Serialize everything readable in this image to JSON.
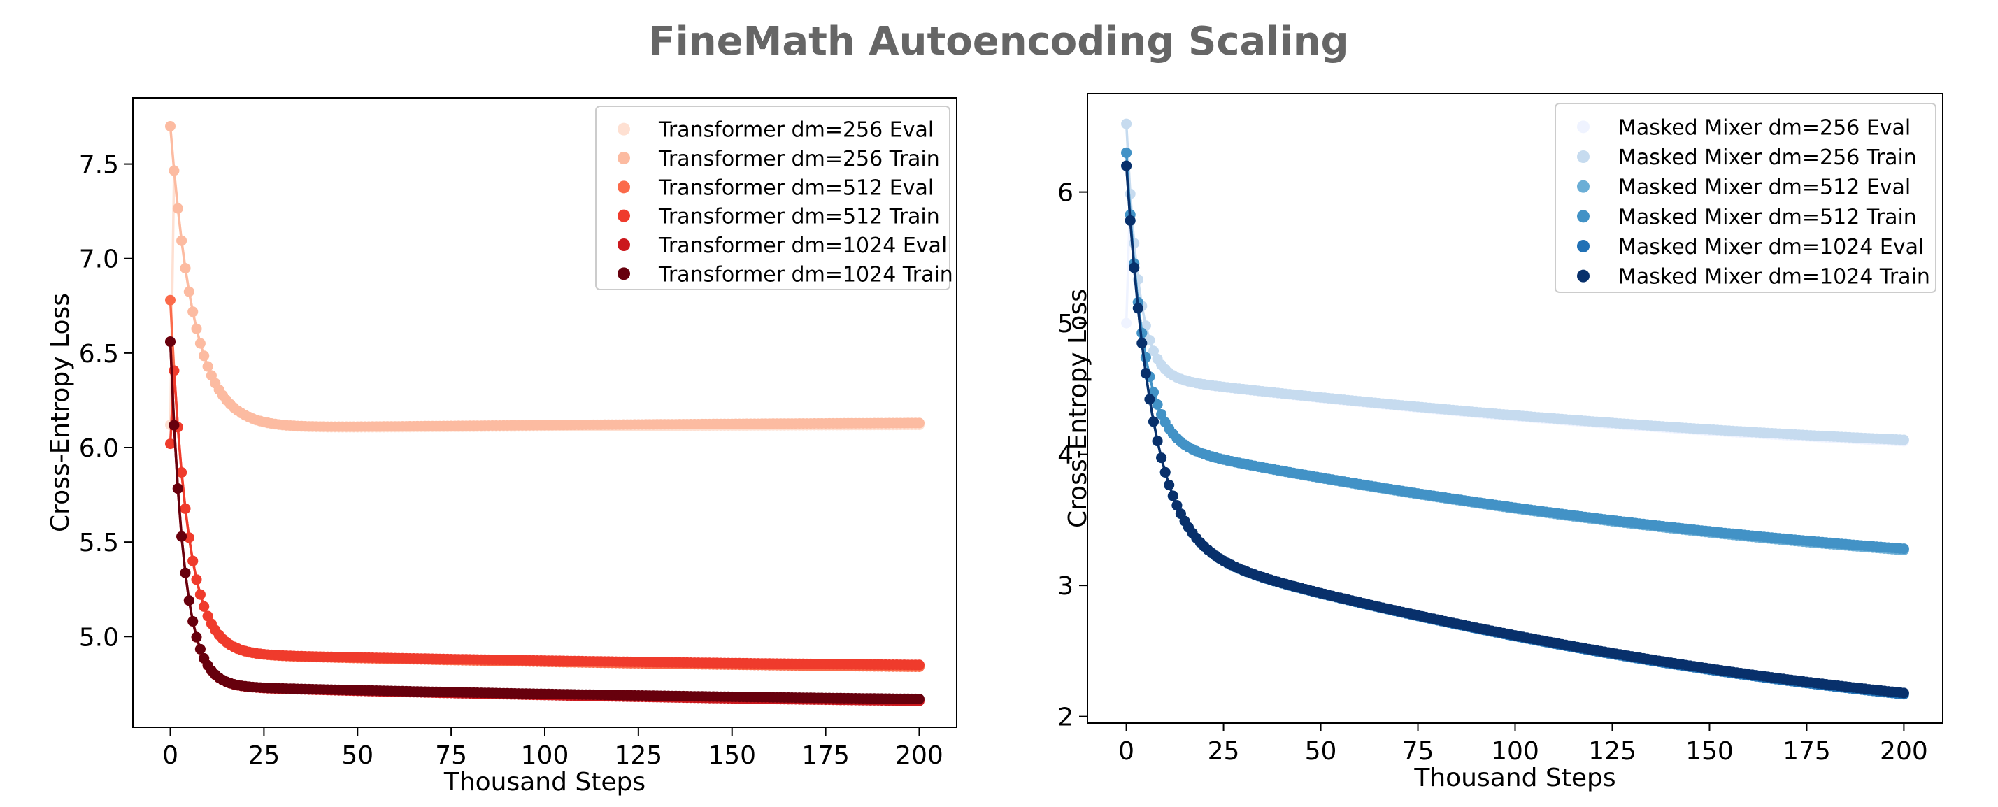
{
  "figure": {
    "title": "FineMath Autoencoding Scaling"
  },
  "chart_data": [
    {
      "type": "line",
      "markers": true,
      "xlabel": "Thousand Steps",
      "ylabel": "Cross-Entropy Loss",
      "xlim": [
        -10,
        210
      ],
      "ylim": [
        4.52,
        7.85
      ],
      "xticks": [
        0,
        25,
        50,
        75,
        100,
        125,
        150,
        175,
        200
      ],
      "yticks": [
        5.0,
        5.5,
        6.0,
        6.5,
        7.0,
        7.5
      ],
      "grid": false,
      "legend_position": "upper right",
      "series": [
        {
          "name": "Transformer dm=256 Eval",
          "color": "#fee0d2",
          "curve": {
            "a": 7.7,
            "b": 6.1,
            "c": 0.0015,
            "tau": 6.3,
            "y0": 6.12,
            "y200": 6.12
          }
        },
        {
          "name": "Transformer dm=256 Train",
          "color": "#fcbba1",
          "curve": {
            "a": 7.7,
            "b": 6.1,
            "c": 0.0015,
            "tau": 6.3,
            "y0": 7.7,
            "y200": 6.13
          }
        },
        {
          "name": "Transformer dm=512 Eval",
          "color": "#fb6a4a",
          "curve": {
            "a": 6.78,
            "b": 4.91,
            "c": 0.0035,
            "tau": 4.5,
            "y0": 6.78,
            "y200": 4.84
          }
        },
        {
          "name": "Transformer dm=512 Train",
          "color": "#ef3b2c",
          "curve": {
            "a": 6.78,
            "b": 4.91,
            "c": 0.0035,
            "tau": 4.5,
            "y0": 6.02,
            "y200": 4.85
          }
        },
        {
          "name": "Transformer dm=1024 Eval",
          "color": "#cb181d",
          "curve": {
            "a": 6.56,
            "b": 4.74,
            "c": 0.0037,
            "tau": 3.6,
            "y0": 6.56,
            "y200": 4.66
          }
        },
        {
          "name": "Transformer dm=1024 Train",
          "color": "#67000d",
          "curve": {
            "a": 6.56,
            "b": 4.74,
            "c": 0.0037,
            "tau": 3.6,
            "y0": 6.56,
            "y200": 4.67
          }
        }
      ]
    },
    {
      "type": "line",
      "markers": true,
      "xlabel": "Thousand Steps",
      "ylabel": "Cross-Entropy Loss",
      "xlim": [
        -10,
        210
      ],
      "ylim": [
        1.95,
        6.75
      ],
      "xticks": [
        0,
        25,
        50,
        75,
        100,
        125,
        150,
        175,
        200
      ],
      "yticks": [
        2,
        3,
        4,
        5,
        6
      ],
      "grid": false,
      "legend_position": "upper right",
      "series": [
        {
          "name": "Masked Mixer dm=256 Eval",
          "color": "#eff3ff",
          "curve": {
            "a": 6.5,
            "b": 4.6,
            "c": 0.0025,
            "tau": 3.2,
            "y0": 5.0,
            "y200": 4.1
          }
        },
        {
          "name": "Masked Mixer dm=256 Train",
          "color": "#c6dbef",
          "curve": {
            "a": 6.5,
            "b": 4.6,
            "c": 0.0025,
            "tau": 3.2,
            "y0": 6.52,
            "y200": 4.11
          }
        },
        {
          "name": "Masked Mixer dm=512 Eval",
          "color": "#6baed6",
          "curve": {
            "a": 6.3,
            "b": 4.1,
            "c": 0.0041,
            "tau": 4.2,
            "y0": 6.3,
            "y200": 3.27
          }
        },
        {
          "name": "Masked Mixer dm=512 Train",
          "color": "#4292c6",
          "curve": {
            "a": 6.3,
            "b": 4.1,
            "c": 0.0041,
            "tau": 4.2,
            "y0": 6.3,
            "y200": 3.28
          }
        },
        {
          "name": "Masked Mixer dm=1024 Eval",
          "color": "#2171b5",
          "curve": {
            "a": 6.2,
            "b": 3.33,
            "c": 0.0058,
            "tau": 6.5,
            "y0": 6.2,
            "y200": 2.17
          }
        },
        {
          "name": "Masked Mixer dm=1024 Train",
          "color": "#08306b",
          "curve": {
            "a": 6.2,
            "b": 3.33,
            "c": 0.0058,
            "tau": 6.5,
            "y0": 6.2,
            "y200": 2.18
          }
        }
      ]
    }
  ]
}
